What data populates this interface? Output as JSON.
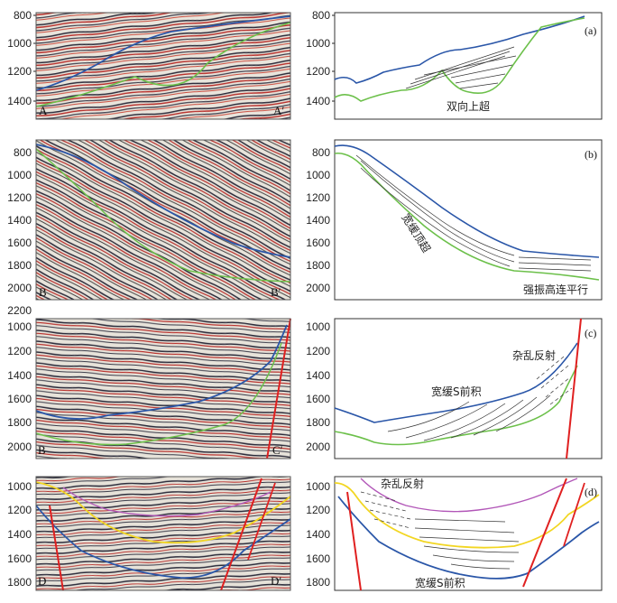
{
  "colors": {
    "blue_horizon": "#2a56a8",
    "green_horizon": "#6cc04a",
    "yellow_horizon": "#f2d622",
    "purple_horizon": "#b257b8",
    "fault_red": "#e02020",
    "interp_line": "#333333",
    "seismic_bg": "#e6e2da",
    "seismic_dark": "#2b2b3a",
    "seismic_red": "#b8322e"
  },
  "rows": [
    {
      "id": "a",
      "y_ticks": [
        "800",
        "1000",
        "1200",
        "1400"
      ],
      "seismic_left_label": "A",
      "seismic_right_label": "A′",
      "panel_label": "(a)",
      "annotations": [
        "双向上超"
      ]
    },
    {
      "id": "b",
      "y_ticks": [
        "800",
        "1000",
        "1200",
        "1400",
        "1600",
        "1800",
        "2000",
        "2200"
      ],
      "seismic_left_label": "B",
      "seismic_right_label": "B′",
      "panel_label": "(b)",
      "annotations": [
        "宽缓顶超",
        "强振高连平行"
      ]
    },
    {
      "id": "c",
      "y_ticks": [
        "1000",
        "1200",
        "1400",
        "1600",
        "1800",
        "2000"
      ],
      "seismic_left_label": "B",
      "seismic_right_label": "C′",
      "panel_label": "(c)",
      "annotations": [
        "杂乱反射",
        "宽缓S前积"
      ]
    },
    {
      "id": "d",
      "y_ticks": [
        "1000",
        "1200",
        "1400",
        "1600",
        "1800"
      ],
      "seismic_left_label": "D",
      "seismic_right_label": "D′",
      "panel_label": "(d)",
      "annotations": [
        "杂乱反射",
        "宽缓S前积"
      ]
    }
  ]
}
